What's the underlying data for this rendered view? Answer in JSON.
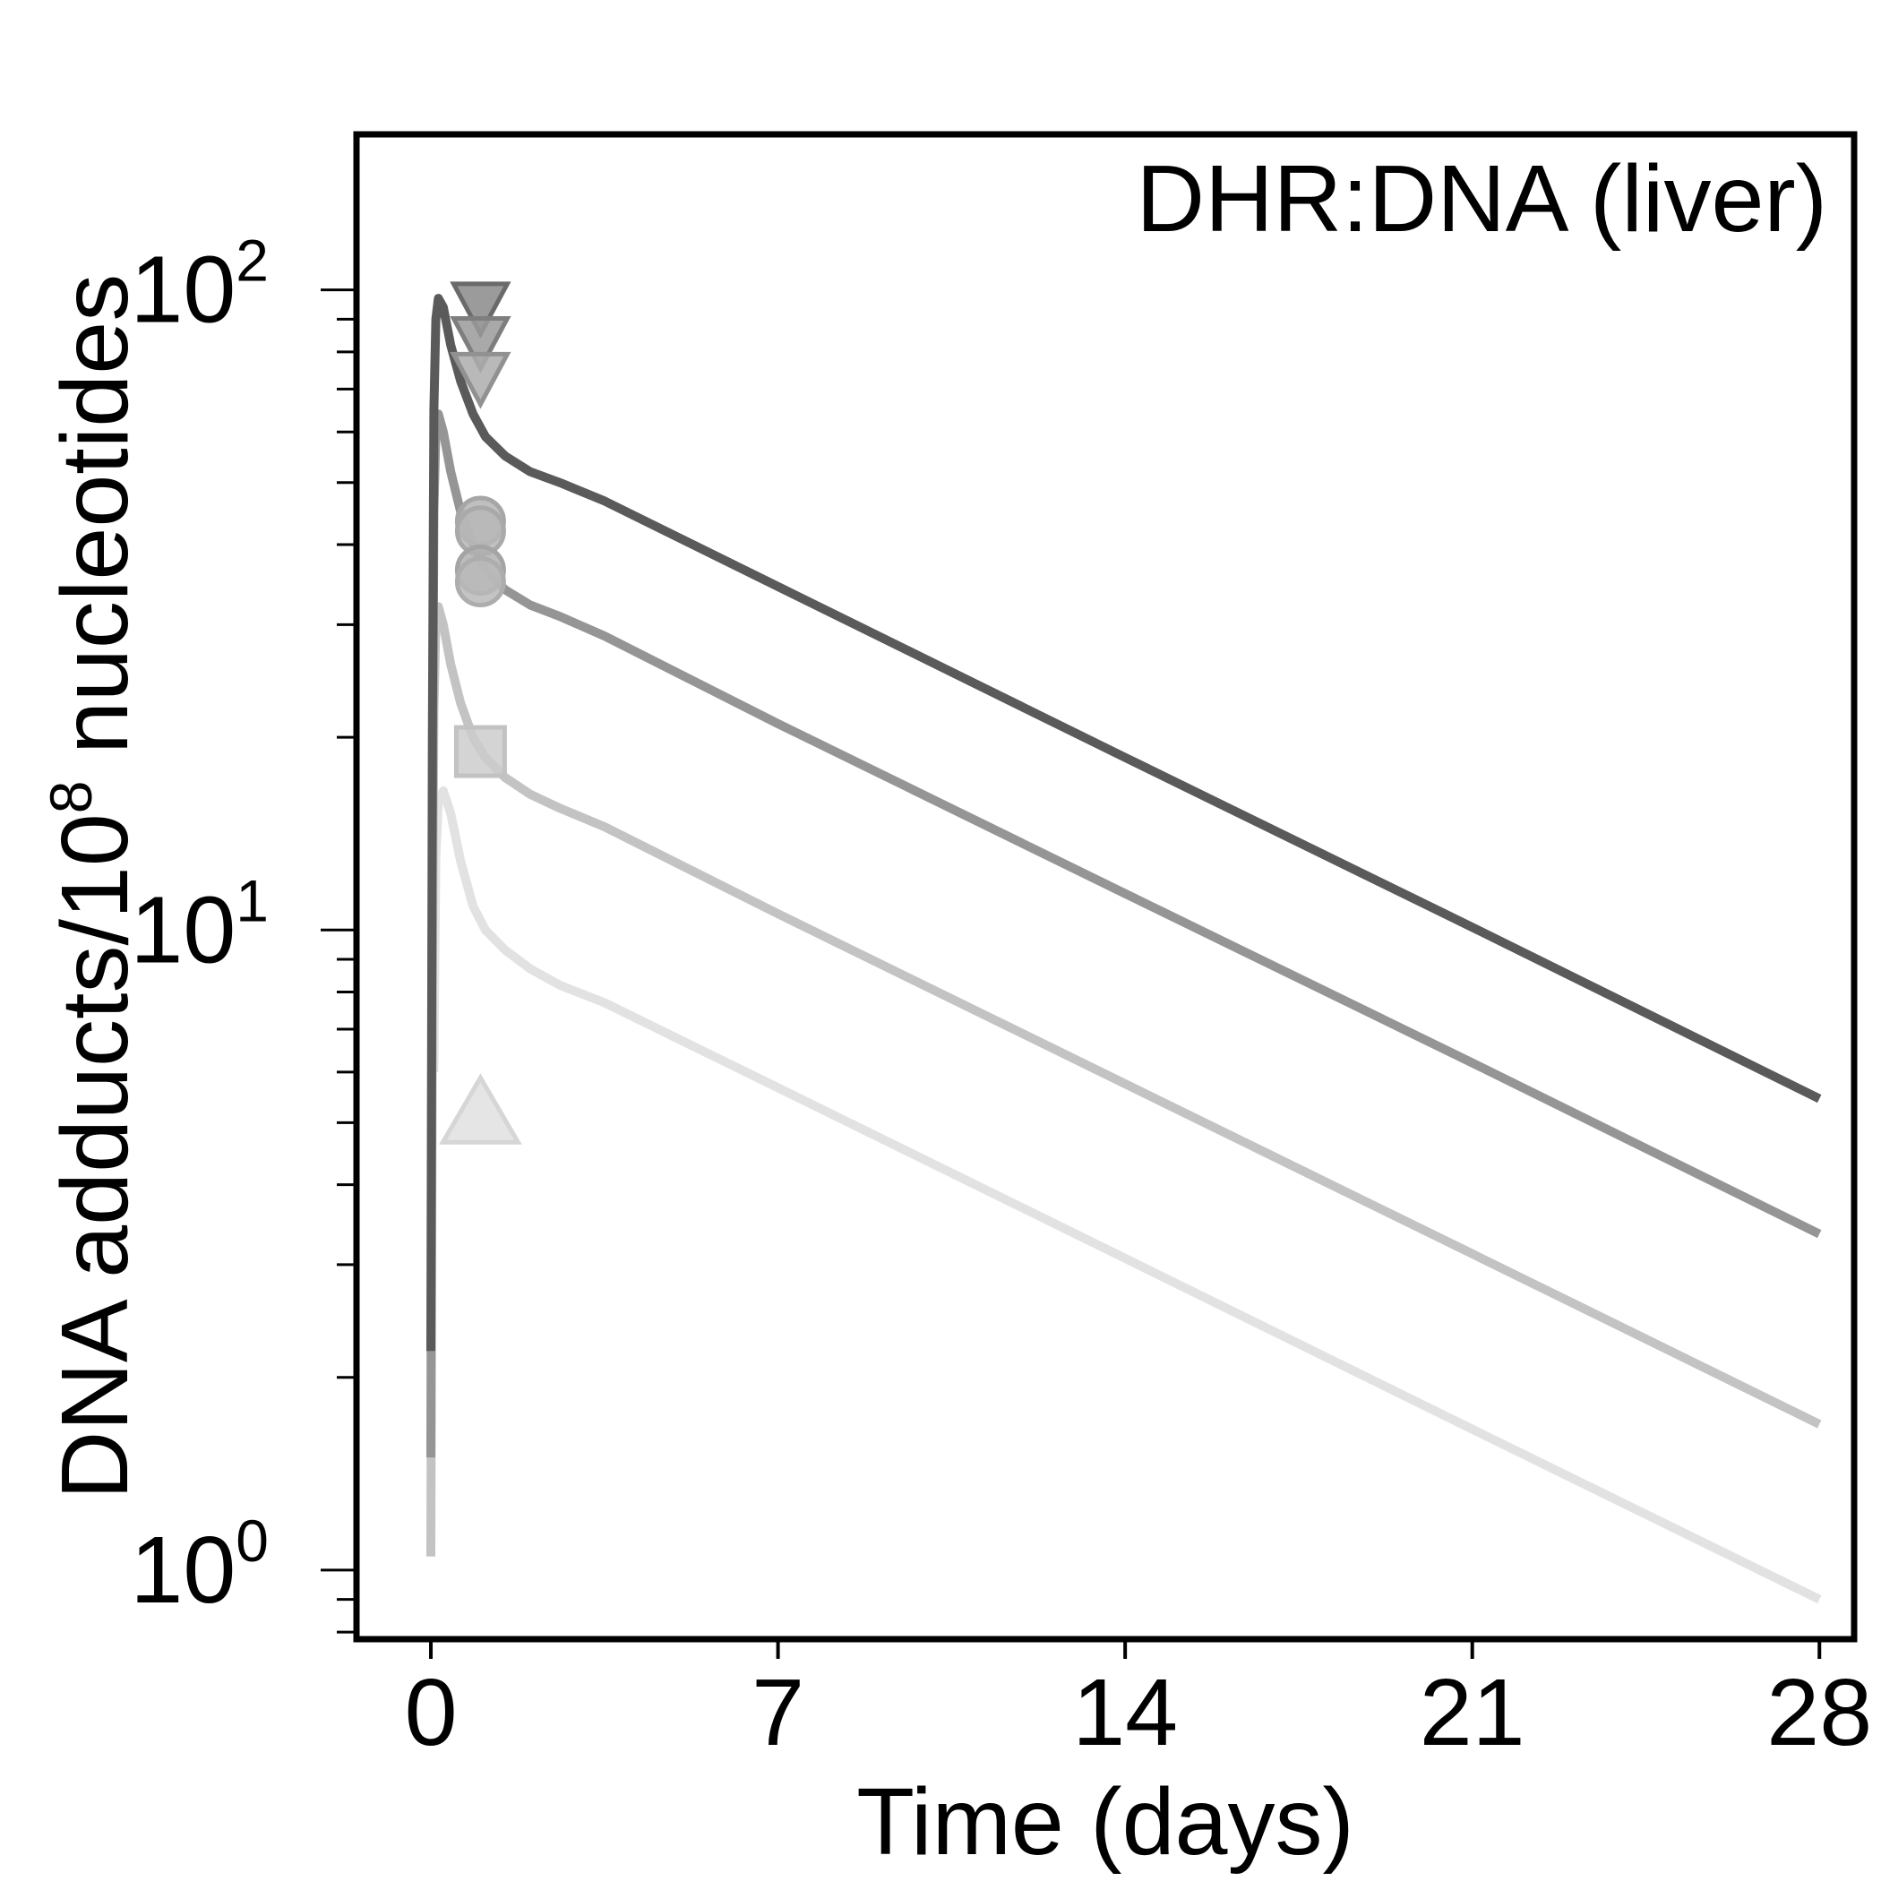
{
  "chart_data": {
    "type": "line",
    "title": "DHR:DNA (liver)",
    "xlabel": "Time (days)",
    "ylabel_main": "DNA adducts/10",
    "ylabel_sup": "8",
    "ylabel_tail": " nucleotides",
    "y_scale": "log",
    "xlim": [
      -1.5,
      28.7
    ],
    "ylim": [
      0.78,
      175
    ],
    "x_ticks": [
      0,
      7,
      14,
      21,
      28
    ],
    "x_tick_labels": [
      "0",
      "7",
      "14",
      "21",
      "28"
    ],
    "y_major_ticks": [
      1,
      10,
      100
    ],
    "y_tick_labels": [
      {
        "base": "10",
        "exp": "0"
      },
      {
        "base": "10",
        "exp": "1"
      },
      {
        "base": "10",
        "exp": "2"
      }
    ],
    "grid": false,
    "series": [
      {
        "color": "#5a5a5a",
        "x": [
          0,
          0.03,
          0.06,
          0.1,
          0.15,
          0.25,
          0.4,
          0.6,
          0.85,
          1.1,
          1.5,
          2,
          2.6,
          3.5,
          7,
          14,
          21,
          28
        ],
        "y": [
          2.2,
          20,
          65,
          90,
          97,
          94,
          82,
          72,
          64,
          59,
          55,
          52,
          50,
          46.8,
          34.4,
          18.6,
          10.1,
          5.45
        ]
      },
      {
        "color": "#959595",
        "x": [
          0,
          0.03,
          0.06,
          0.1,
          0.15,
          0.25,
          0.4,
          0.6,
          0.85,
          1.1,
          1.5,
          2,
          2.6,
          3.5,
          7,
          14,
          21,
          28
        ],
        "y": [
          1.5,
          14,
          45,
          60,
          64,
          60,
          52,
          45,
          40,
          36.5,
          34,
          32.2,
          30.9,
          28.8,
          21,
          11.4,
          6.2,
          3.35
        ]
      },
      {
        "color": "#c3c3c3",
        "x": [
          0,
          0.03,
          0.06,
          0.1,
          0.15,
          0.25,
          0.4,
          0.6,
          0.85,
          1.1,
          1.5,
          2,
          2.6,
          3.5,
          7,
          14,
          21,
          28
        ],
        "y": [
          1.05,
          8,
          22,
          30,
          32,
          30,
          26,
          22.6,
          20,
          18.6,
          17.3,
          16.3,
          15.5,
          14.5,
          10.6,
          5.75,
          3.12,
          1.69
        ]
      },
      {
        "color": "#e2e2e2",
        "x": [
          0.06,
          0.1,
          0.15,
          0.25,
          0.4,
          0.6,
          0.85,
          1.1,
          1.5,
          2,
          2.6,
          3.5,
          7,
          14,
          21,
          28
        ],
        "y": [
          6,
          13,
          16,
          16.5,
          15.2,
          12.8,
          10.9,
          10,
          9.3,
          8.7,
          8.2,
          7.7,
          5.67,
          3.07,
          1.66,
          0.9
        ]
      }
    ],
    "observations": [
      {
        "marker": "triangle-down",
        "fill": "#8a8a8a",
        "stroke": "#6a6a6a",
        "x": 1,
        "y": 94
      },
      {
        "marker": "triangle-down",
        "fill": "#9a9a9a",
        "stroke": "#7e7e7e",
        "x": 1,
        "y": 83
      },
      {
        "marker": "triangle-down",
        "fill": "#adadad",
        "stroke": "#919191",
        "x": 1,
        "y": 73
      },
      {
        "marker": "circle",
        "fill": "#b4b4b4",
        "stroke": "#a6a6a6",
        "x": 1,
        "y": 43.5
      },
      {
        "marker": "circle",
        "fill": "#b7b7b7",
        "stroke": "#a9a9a9",
        "x": 1,
        "y": 42
      },
      {
        "marker": "circle",
        "fill": "#b0b0b0",
        "stroke": "#a4a4a4",
        "x": 1,
        "y": 36.5
      },
      {
        "marker": "circle",
        "fill": "#bababa",
        "stroke": "#adadad",
        "x": 1,
        "y": 35
      },
      {
        "marker": "square",
        "fill": "#cccccc",
        "stroke": "#c2c2c2",
        "x": 1,
        "y": 19
      },
      {
        "marker": "triangle-up",
        "fill": "#e0e0e0",
        "stroke": "#d6d6d6",
        "x": 1,
        "y": 5.2
      }
    ]
  }
}
